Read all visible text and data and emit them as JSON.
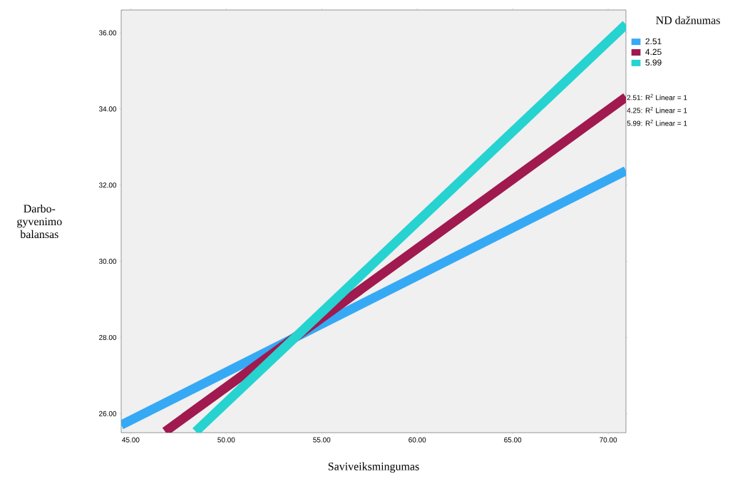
{
  "chart_data": {
    "type": "line",
    "xlabel": "Saviveiksmingumas",
    "ylabel": "Darbo-gyvenimo balansas",
    "legend_title": "ND dažnumas",
    "legend": "right",
    "xlim": [
      44.5,
      70.93
    ],
    "ylim": [
      25.5,
      36.6
    ],
    "xticks": [
      {
        "value": 45,
        "label": "45.00"
      },
      {
        "value": 50,
        "label": "50.00"
      },
      {
        "value": 55,
        "label": "55.00"
      },
      {
        "value": 60,
        "label": "60.00"
      },
      {
        "value": 65,
        "label": "65.00"
      },
      {
        "value": 70,
        "label": "70.00"
      }
    ],
    "yticks": [
      {
        "value": 26,
        "label": "26.00"
      },
      {
        "value": 28,
        "label": "28.00"
      },
      {
        "value": 30,
        "label": "30.00"
      },
      {
        "value": 32,
        "label": "32.00"
      },
      {
        "value": 34,
        "label": "34.00"
      },
      {
        "value": 36,
        "label": "36.00"
      }
    ],
    "series": [
      {
        "name": "2.51",
        "color": "#36a9f5",
        "x": [
          44.5,
          70.93
        ],
        "values": [
          25.7,
          32.38
        ]
      },
      {
        "name": "4.25",
        "color": "#a0194f",
        "x": [
          46.8,
          70.93
        ],
        "values": [
          25.53,
          34.31
        ]
      },
      {
        "name": "5.99",
        "color": "#26d3d0",
        "x": [
          48.4,
          70.93
        ],
        "values": [
          25.53,
          36.22
        ]
      }
    ],
    "annotations": [
      "2.51: R$^{2}$ Linear = 1",
      "4.25: R$^{2}$ Linear = 1",
      "5.99: R$^{2}$ Linear = 1"
    ]
  }
}
